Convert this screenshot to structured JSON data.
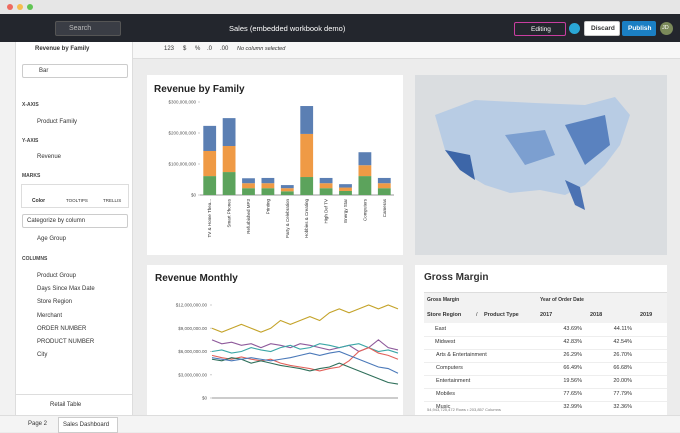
{
  "window": {
    "search": "Search",
    "title": "Sales (embedded workbook demo)",
    "mode": "Editing",
    "discard": "Discard",
    "publish": "Publish",
    "avatar": "JD"
  },
  "toolbar": {
    "format": "123",
    "currency": "$",
    "percent": "%",
    "dec_less": ".0",
    "dec_more": ".00",
    "status": "No column selected"
  },
  "panel": {
    "title": "Revenue by Family",
    "chart_type": "Bar",
    "x_axis": "X-AXIS",
    "x_field": "Product Family",
    "y_axis": "Y-AXIS",
    "y_field": "Revenue",
    "marks": "MARKS",
    "tabs": [
      "Color",
      "TOOLTIPS",
      "TRELLIS"
    ],
    "color_mode": "Categorize by column",
    "color_field": "Age Group",
    "columns_title": "COLUMNS",
    "columns": [
      "Product Group",
      "Days Since Max Date",
      "Store Region",
      "Merchant",
      "ORDER NUMBER",
      "PRODUCT NUMBER",
      "City"
    ],
    "source": "Retail Table"
  },
  "chart_data": [
    {
      "type": "bar",
      "stacked": true,
      "title": "Revenue by Family",
      "categories": [
        "TV & Home Thea...",
        "Smart Phones",
        "Refurbished MP3",
        "Printing",
        "Party & Celebration",
        "Hobbies & Creating",
        "High Def TV",
        "Energy Star",
        "Computers",
        "Cameras"
      ],
      "series": [
        {
          "color": "#5ca35c",
          "values": [
            61000000,
            74000000,
            22000000,
            22000000,
            12000000,
            58000000,
            22000000,
            13000000,
            61000000,
            22000000
          ]
        },
        {
          "color": "#ef9a45",
          "values": [
            81000000,
            84000000,
            16000000,
            16000000,
            10000000,
            139000000,
            16000000,
            11000000,
            35000000,
            16000000
          ]
        },
        {
          "color": "#5b7fb3",
          "values": [
            81000000,
            90000000,
            16000000,
            17000000,
            10000000,
            90000000,
            17000000,
            11000000,
            42000000,
            17000000
          ]
        }
      ],
      "ylim": [
        0,
        300000000
      ],
      "yticks": [
        {
          "value": 0,
          "label": "$0"
        },
        {
          "value": 100000000,
          "label": "$100,000,000"
        },
        {
          "value": 200000000,
          "label": "$200,000,000"
        },
        {
          "value": 300000000,
          "label": "$300,000,000"
        }
      ],
      "grid": false
    },
    {
      "type": "line",
      "title": "Revenue Monthly",
      "categories": [
        null,
        null,
        null,
        null,
        null,
        null,
        null,
        null,
        null,
        null,
        null,
        null,
        null,
        null,
        null,
        null,
        null,
        null,
        null,
        null
      ],
      "series": [
        {
          "color": "#c4a329",
          "values": [
            9000000,
            8500000,
            9000000,
            9500000,
            9000000,
            8500000,
            9000000,
            10000000,
            9500000,
            10000000,
            10500000,
            10000000,
            11000000,
            11500000,
            11000000,
            11500000,
            12000000,
            11500000,
            12000000,
            11500000
          ]
        },
        {
          "color": "#8e5a9b",
          "values": [
            7500000,
            7000000,
            7200000,
            6800000,
            7000000,
            6500000,
            7000000,
            6800000,
            6500000,
            7000000,
            6800000,
            6500000,
            6200000,
            6500000,
            6800000,
            6000000,
            6500000,
            7500000,
            6500000,
            6200000
          ]
        },
        {
          "color": "#3aa6a6",
          "values": [
            6000000,
            6200000,
            5800000,
            6000000,
            6500000,
            6200000,
            6000000,
            6500000,
            6800000,
            6300000,
            6500000,
            7000000,
            6800000,
            6500000,
            6800000,
            7000000,
            6500000,
            6000000,
            6200000,
            5800000
          ]
        },
        {
          "color": "#e2615a",
          "values": [
            5500000,
            5200000,
            5000000,
            5300000,
            5000000,
            4800000,
            5000000,
            4500000,
            4200000,
            4000000,
            3800000,
            3500000,
            3800000,
            4000000,
            4800000,
            6000000,
            6500000,
            5800000,
            5500000,
            5000000
          ]
        },
        {
          "color": "#2f6f5a",
          "values": [
            5000000,
            4800000,
            5200000,
            5000000,
            4500000,
            4800000,
            4500000,
            4200000,
            4000000,
            3800000,
            3500000,
            3800000,
            4000000,
            4500000,
            4000000,
            3500000,
            3000000,
            2500000,
            2000000,
            1800000
          ]
        },
        {
          "color": "#4b79b9",
          "values": [
            5200000,
            5000000,
            4800000,
            5000000,
            5200000,
            5000000,
            4800000,
            5000000,
            5200000,
            5500000,
            5800000,
            5500000,
            5800000,
            6000000,
            5500000,
            5000000,
            4500000,
            4000000,
            3800000,
            3200000
          ]
        }
      ],
      "ylim": [
        0,
        12000000
      ],
      "yticks": [
        {
          "value": 0,
          "label": "$0"
        },
        {
          "value": 3000000,
          "label": "$3,000,000.00"
        },
        {
          "value": 6000000,
          "label": "$6,000,000.00"
        },
        {
          "value": 9000000,
          "label": "$9,000,000.00"
        },
        {
          "value": 12000000,
          "label": "$12,000,000.00"
        }
      ],
      "grid": false
    }
  ],
  "table": {
    "title": "Gross Margin",
    "corner": "Gross Margin",
    "column_group": "Year of Order Date",
    "row_headers": [
      "Store Region",
      "/",
      "Product Type"
    ],
    "years": [
      "2017",
      "2018",
      "2019"
    ],
    "rows": [
      [
        "East",
        "43.69%",
        "44.11%"
      ],
      [
        "Midwest",
        "42.83%",
        "42.54%"
      ],
      [
        "Arts & Entertainment",
        "26.29%",
        "26.70%"
      ],
      [
        "Computers",
        "66.49%",
        "66.68%"
      ],
      [
        "Entertainment",
        "19.56%",
        "20.00%"
      ],
      [
        "Mobiles",
        "77.65%",
        "77.79%"
      ],
      [
        "Music",
        "32.99%",
        "32.36%"
      ]
    ],
    "footer": "54,943,725,472 Rows • 203,857 Columns"
  },
  "tabs": [
    "Page 2",
    "Sales Dashboard"
  ]
}
